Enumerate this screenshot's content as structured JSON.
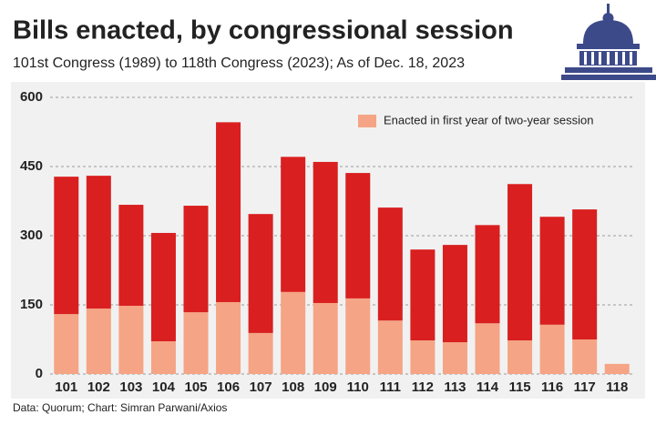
{
  "chart_data": {
    "type": "stacked-bar",
    "title": "Bills enacted, by congressional session",
    "subtitle": "101st Congress (1989) to 118th Congress (2023); As of Dec. 18, 2023",
    "source": "Data: Quorum; Chart: Simran Parwani/Axios",
    "categories": [
      "101",
      "102",
      "103",
      "104",
      "105",
      "106",
      "107",
      "108",
      "109",
      "110",
      "111",
      "112",
      "113",
      "114",
      "115",
      "116",
      "117",
      "118"
    ],
    "series": [
      {
        "name": "Enacted in first year of two-year session",
        "color": "#f5a485",
        "values": [
          130,
          142,
          148,
          71,
          134,
          156,
          89,
          178,
          154,
          164,
          116,
          73,
          69,
          110,
          73,
          107,
          75,
          22
        ]
      },
      {
        "color": "#d91f1f",
        "values": [
          298,
          288,
          219,
          235,
          231,
          390,
          258,
          293,
          306,
          272,
          245,
          197,
          211,
          213,
          339,
          234,
          282,
          null
        ]
      }
    ],
    "ylim": [
      0,
      600
    ],
    "yticks": [
      0,
      150,
      300,
      450,
      600
    ],
    "grid": true,
    "legend": "top-right"
  }
}
